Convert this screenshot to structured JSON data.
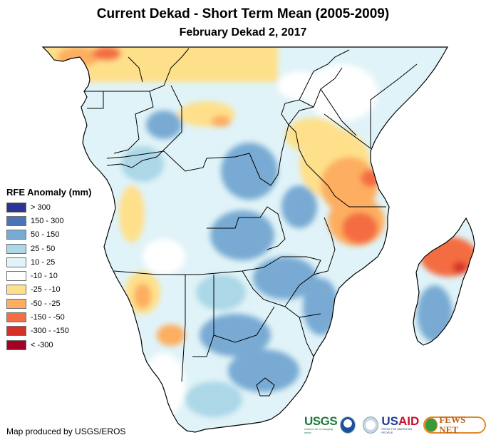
{
  "title": "Current Dekad - Short Term Mean (2005-2009)",
  "subtitle": "February Dekad 2, 2017",
  "legend": {
    "title": "RFE Anomaly (mm)",
    "items": [
      {
        "label": "> 300",
        "color": "#2b3394"
      },
      {
        "label": "150 - 300",
        "color": "#4a73b8"
      },
      {
        "label": "50 - 150",
        "color": "#78aad3"
      },
      {
        "label": "25 - 50",
        "color": "#abd7e7"
      },
      {
        "label": "10 - 25",
        "color": "#e0f3f8"
      },
      {
        "label": "-10 - 10",
        "color": "#ffffff"
      },
      {
        "label": "-25 - -10",
        "color": "#fee08b"
      },
      {
        "label": "-50 - -25",
        "color": "#fdae61"
      },
      {
        "label": "-150 - -50",
        "color": "#f46d43"
      },
      {
        "label": "-300 - -150",
        "color": "#d73027"
      },
      {
        "label": "< -300",
        "color": "#a50026"
      }
    ]
  },
  "credit": "Map produced by USGS/EROS",
  "logos": {
    "usgs": "USGS",
    "usgs_tagline": "science for a changing world",
    "usaid_us": "US",
    "usaid_aid": "AID",
    "usaid_tagline": "FROM THE AMERICAN PEOPLE",
    "fews": "FEWS NET"
  },
  "map": {
    "region": "Southern Africa",
    "variable": "RFE rainfall anomaly"
  }
}
